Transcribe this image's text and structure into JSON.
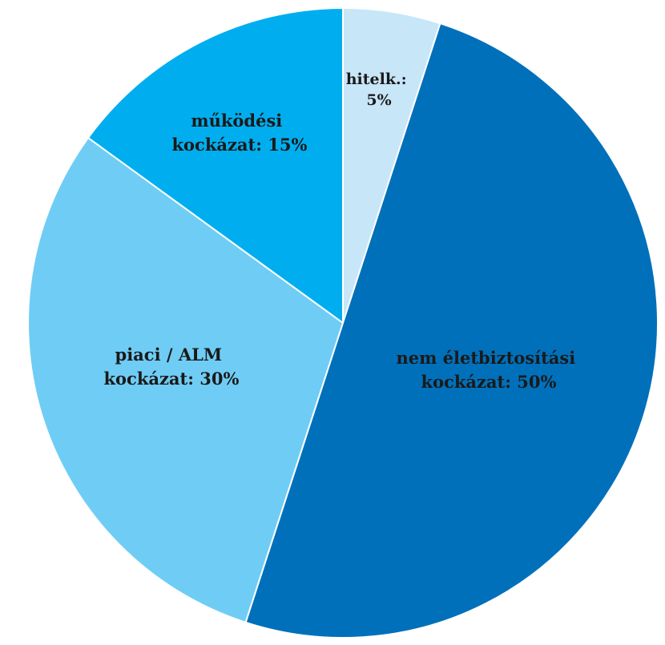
{
  "chart_data": {
    "type": "pie",
    "title": "",
    "start": "12 o'clock",
    "direction": "clockwise",
    "slices": [
      {
        "key": "hitel",
        "label_lines": [
          "hitelk.:",
          "5%"
        ],
        "value": 5,
        "color": "#c7e6f8"
      },
      {
        "key": "nemelet",
        "label_lines": [
          "nem életbiztosítási",
          "kockázat: 50%"
        ],
        "value": 50,
        "color": "#0070bb"
      },
      {
        "key": "piaci",
        "label_lines": [
          "piaci / ALM",
          "kockázat: 30%"
        ],
        "value": 30,
        "color": "#6fcdf5"
      },
      {
        "key": "mukodesi",
        "label_lines": [
          "működési",
          "kockázat: 15%"
        ],
        "value": 15,
        "color": "#00aeef"
      }
    ]
  }
}
